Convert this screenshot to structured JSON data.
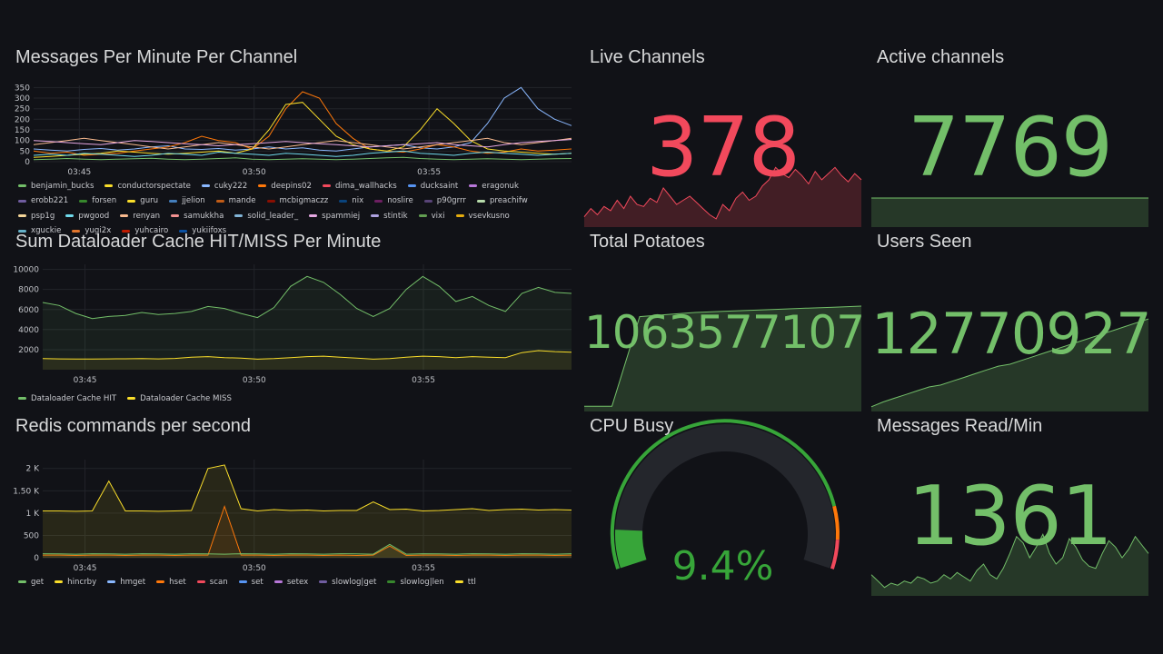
{
  "colors": {
    "background": "#111217",
    "red": "#f2495c",
    "green": "#73bf69",
    "yellow": "#fade2a",
    "orange": "#ff780a",
    "grid": "#24262b"
  },
  "panels": {
    "messages_per_minute": {
      "title": "Messages Per Minute Per Channel",
      "legend": [
        {
          "label": "benjamin_bucks",
          "color": "#73bf69"
        },
        {
          "label": "conductorspectate",
          "color": "#fade2a"
        },
        {
          "label": "cuky222",
          "color": "#8ab8ff"
        },
        {
          "label": "deepins02",
          "color": "#ff780a"
        },
        {
          "label": "dima_wallhacks",
          "color": "#f2495c"
        },
        {
          "label": "ducksaint",
          "color": "#5794f2"
        },
        {
          "label": "eragonuk",
          "color": "#b877d9"
        },
        {
          "label": "erobb221",
          "color": "#705da0"
        },
        {
          "label": "forsen",
          "color": "#37872d"
        },
        {
          "label": "guru",
          "color": "#fade2a"
        },
        {
          "label": "jjelion",
          "color": "#447ebc"
        },
        {
          "label": "mande",
          "color": "#c15c17"
        },
        {
          "label": "mcbigmaczz",
          "color": "#890f02"
        },
        {
          "label": "nix",
          "color": "#0a437c"
        },
        {
          "label": "noslire",
          "color": "#6d1f62"
        },
        {
          "label": "p90grrr",
          "color": "#584477"
        },
        {
          "label": "preachifw",
          "color": "#b7dbab"
        },
        {
          "label": "psp1g",
          "color": "#f4d598"
        },
        {
          "label": "pwgood",
          "color": "#70dbed"
        },
        {
          "label": "renyan",
          "color": "#f9ba8f"
        },
        {
          "label": "samukkha",
          "color": "#f29191"
        },
        {
          "label": "solid_leader_",
          "color": "#82b5d8"
        },
        {
          "label": "spammiej",
          "color": "#e5a8e2"
        },
        {
          "label": "stintik",
          "color": "#aea2e0"
        },
        {
          "label": "vixi",
          "color": "#629e51"
        },
        {
          "label": "vsevkusno",
          "color": "#e5ac0e"
        },
        {
          "label": "xguckie",
          "color": "#64b0c8"
        },
        {
          "label": "yugi2x",
          "color": "#e0752d"
        },
        {
          "label": "yuhcairo",
          "color": "#bf1b00"
        },
        {
          "label": "yukiifoxs",
          "color": "#0a50a1"
        }
      ],
      "chart_data": {
        "type": "line",
        "y_ticks": [
          "350",
          "300",
          "250",
          "200",
          "150",
          "100",
          "50",
          "0"
        ],
        "x_ticks": [
          "03:45",
          "03:50",
          "03:55"
        ],
        "ylim": [
          0,
          360
        ],
        "series": [
          {
            "name": "cuky222",
            "color": "#8ab8ff",
            "values": [
              60,
              55,
              50,
              58,
              62,
              55,
              60,
              70,
              75,
              60,
              58,
              62,
              55,
              60,
              70,
              60,
              65,
              55,
              50,
              60,
              70,
              75,
              80,
              65,
              60,
              70,
              90,
              180,
              300,
              350,
              250,
              200,
              170
            ]
          },
          {
            "name": "deepins02",
            "color": "#ff780a",
            "values": [
              50,
              40,
              45,
              30,
              35,
              40,
              50,
              60,
              70,
              90,
              120,
              100,
              90,
              60,
              120,
              250,
              330,
              300,
              180,
              110,
              60,
              50,
              45,
              60,
              80,
              70,
              50,
              40,
              45,
              60,
              50,
              55,
              60
            ]
          },
          {
            "name": "guru",
            "color": "#fade2a",
            "values": [
              20,
              25,
              30,
              35,
              40,
              50,
              45,
              40,
              35,
              40,
              45,
              50,
              40,
              60,
              150,
              270,
              280,
              200,
              120,
              80,
              60,
              50,
              70,
              150,
              250,
              180,
              100,
              60,
              50,
              45,
              40,
              35,
              40
            ]
          },
          {
            "name": "renyan",
            "color": "#f9ba8f",
            "values": [
              80,
              90,
              100,
              110,
              100,
              90,
              80,
              70,
              60,
              70,
              80,
              90,
              80,
              70,
              60,
              70,
              80,
              90,
              100,
              90,
              80,
              70,
              60,
              70,
              80,
              90,
              100,
              110,
              90,
              80,
              90,
              100,
              110
            ]
          },
          {
            "name": "pwgood",
            "color": "#70dbed",
            "values": [
              30,
              35,
              30,
              40,
              35,
              30,
              25,
              30,
              40,
              35,
              30,
              45,
              40,
              35,
              30,
              40,
              35,
              30,
              25,
              30,
              40,
              45,
              50,
              40,
              35,
              30,
              40,
              45,
              40,
              35,
              30,
              35,
              40
            ]
          },
          {
            "name": "benjamin_bucks",
            "color": "#73bf69",
            "values": [
              10,
              12,
              15,
              12,
              10,
              12,
              14,
              16,
              12,
              10,
              12,
              15,
              18,
              12,
              10,
              12,
              14,
              12,
              10,
              12,
              15,
              18,
              20,
              15,
              12,
              10,
              12,
              14,
              12,
              10,
              12,
              14,
              15
            ]
          },
          {
            "name": "spammiej",
            "color": "#e5a8e2",
            "values": [
              100,
              95,
              90,
              85,
              80,
              90,
              100,
              95,
              90,
              85,
              80,
              75,
              80,
              85,
              90,
              95,
              90,
              85,
              80,
              75,
              70,
              75,
              80,
              85,
              90,
              80,
              75,
              70,
              80,
              90,
              95,
              100,
              105
            ]
          }
        ]
      }
    },
    "dataloader": {
      "title": "Sum Dataloader Cache HIT/MISS Per Minute",
      "legend": [
        {
          "label": "Dataloader Cache HIT",
          "color": "#73bf69"
        },
        {
          "label": "Dataloader Cache MISS",
          "color": "#fade2a"
        }
      ],
      "chart_data": {
        "type": "area",
        "y_ticks": [
          "10000",
          "8000",
          "6000",
          "4000",
          "2000"
        ],
        "x_ticks": [
          "03:45",
          "03:50",
          "03:55"
        ],
        "ylim": [
          0,
          10500
        ],
        "series": [
          {
            "name": "Dataloader Cache HIT",
            "color": "#73bf69",
            "values": [
              6700,
              6400,
              5600,
              5100,
              5300,
              5400,
              5700,
              5500,
              5600,
              5800,
              6300,
              6100,
              5600,
              5200,
              6200,
              8300,
              9300,
              8700,
              7500,
              6100,
              5300,
              6100,
              8000,
              9300,
              8300,
              6800,
              7300,
              6400,
              5800,
              7600,
              8200,
              7700,
              7600
            ]
          },
          {
            "name": "Dataloader Cache MISS",
            "color": "#fade2a",
            "values": [
              1100,
              1080,
              1070,
              1060,
              1080,
              1090,
              1100,
              1080,
              1120,
              1250,
              1300,
              1200,
              1150,
              1050,
              1100,
              1200,
              1300,
              1350,
              1250,
              1150,
              1050,
              1100,
              1250,
              1350,
              1300,
              1200,
              1300,
              1250,
              1200,
              1700,
              1900,
              1800,
              1750
            ]
          }
        ]
      }
    },
    "redis": {
      "title": "Redis commands per second",
      "legend": [
        {
          "label": "get",
          "color": "#73bf69"
        },
        {
          "label": "hincrby",
          "color": "#fade2a"
        },
        {
          "label": "hmget",
          "color": "#8ab8ff"
        },
        {
          "label": "hset",
          "color": "#ff780a"
        },
        {
          "label": "scan",
          "color": "#f2495c"
        },
        {
          "label": "set",
          "color": "#5794f2"
        },
        {
          "label": "setex",
          "color": "#b877d9"
        },
        {
          "label": "slowlog|get",
          "color": "#705da0"
        },
        {
          "label": "slowlog|len",
          "color": "#37872d"
        },
        {
          "label": "ttl",
          "color": "#fade2a"
        }
      ],
      "chart_data": {
        "type": "area",
        "y_ticks": [
          "2 K",
          "1.50 K",
          "1 K",
          "500",
          "0"
        ],
        "x_ticks": [
          "03:45",
          "03:50",
          "03:55"
        ],
        "ylim": [
          0,
          2200
        ],
        "series": [
          {
            "name": "hincrby",
            "color": "#fade2a",
            "values": [
              1050,
              1050,
              1040,
              1050,
              1720,
              1050,
              1050,
              1040,
              1050,
              1060,
              2000,
              2080,
              1100,
              1050,
              1080,
              1060,
              1070,
              1050,
              1060,
              1060,
              1250,
              1080,
              1090,
              1050,
              1060,
              1080,
              1100,
              1060,
              1080,
              1090,
              1070,
              1080,
              1070
            ]
          },
          {
            "name": "hset",
            "color": "#ff780a",
            "values": [
              60,
              60,
              50,
              60,
              60,
              50,
              60,
              60,
              50,
              60,
              60,
              1150,
              60,
              60,
              50,
              60,
              60,
              50,
              60,
              50,
              60,
              260,
              50,
              60,
              60,
              50,
              60,
              60,
              50,
              60,
              60,
              50,
              60
            ]
          },
          {
            "name": "get",
            "color": "#73bf69",
            "values": [
              90,
              85,
              80,
              90,
              85,
              80,
              90,
              85,
              80,
              90,
              85,
              80,
              90,
              85,
              80,
              90,
              85,
              80,
              90,
              85,
              80,
              300,
              80,
              90,
              85,
              80,
              90,
              85,
              80,
              90,
              85,
              80,
              90
            ]
          }
        ]
      }
    },
    "live_channels": {
      "title": "Live Channels",
      "value": "378",
      "color": "#f2495c",
      "chart_data": {
        "type": "area",
        "values": [
          10,
          18,
          12,
          20,
          16,
          26,
          18,
          30,
          22,
          20,
          28,
          24,
          38,
          30,
          22,
          26,
          30,
          24,
          18,
          12,
          8,
          22,
          16,
          28,
          34,
          26,
          30,
          40,
          46,
          58,
          52,
          48,
          56,
          50,
          42,
          54,
          46,
          52,
          58,
          50,
          44,
          52,
          46
        ]
      }
    },
    "active_channels": {
      "title": "Active channels",
      "value": "7769",
      "color": "#73bf69",
      "chart_data": {
        "type": "area",
        "values": [
          100,
          100,
          100,
          100,
          100,
          100,
          100,
          100
        ]
      }
    },
    "total_potatoes": {
      "title": "Total Potatoes",
      "value": "1063577107",
      "color": "#73bf69",
      "chart_data": {
        "type": "area",
        "values": [
          5,
          5,
          90,
          92,
          94,
          95,
          96,
          97,
          98,
          99,
          100
        ]
      }
    },
    "users_seen": {
      "title": "Users Seen",
      "value": "12770927",
      "color": "#73bf69",
      "chart_data": {
        "type": "area",
        "values": [
          5,
          10,
          14,
          18,
          22,
          26,
          28,
          32,
          36,
          40,
          44,
          48,
          50,
          54,
          58,
          62,
          66,
          70,
          74,
          78,
          82,
          86,
          90,
          94,
          98
        ]
      }
    },
    "cpu_busy": {
      "title": "CPU Busy",
      "value": "9.4%",
      "percent": 9.4,
      "color": "#37a539",
      "threshold_colors": [
        "#37a539",
        "#ff780a",
        "#f2495c"
      ]
    },
    "messages_read": {
      "title": "Messages Read/Min",
      "value": "1361",
      "color": "#73bf69",
      "chart_data": {
        "type": "area",
        "values": [
          20,
          14,
          8,
          12,
          10,
          14,
          12,
          18,
          16,
          12,
          14,
          20,
          16,
          22,
          18,
          14,
          24,
          30,
          20,
          16,
          26,
          40,
          56,
          50,
          36,
          46,
          58,
          40,
          30,
          36,
          54,
          46,
          34,
          28,
          26,
          40,
          52,
          46,
          36,
          44,
          56,
          48,
          40
        ]
      }
    }
  }
}
